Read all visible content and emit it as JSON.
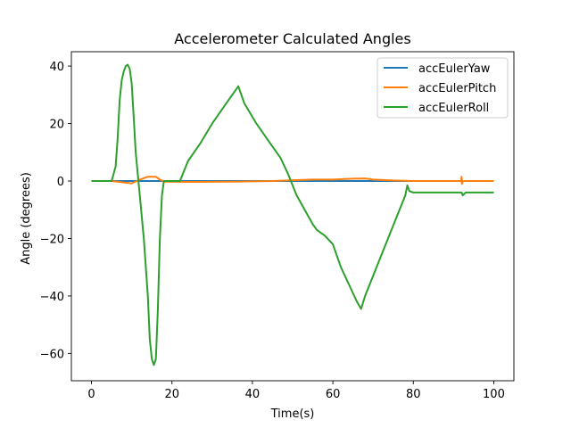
{
  "chart_data": {
    "type": "line",
    "title": "Accelerometer Calculated Angles",
    "xlabel": "Time(s)",
    "ylabel": "Angle (degrees)",
    "xlim": [
      -5,
      105
    ],
    "ylim": [
      -69.5,
      45
    ],
    "xticks": [
      0,
      20,
      40,
      60,
      80,
      100
    ],
    "yticks": [
      -60,
      -40,
      -20,
      0,
      20,
      40
    ],
    "grid": false,
    "legend_position": "top-right",
    "series": [
      {
        "name": "accEulerYaw",
        "color": "#1f77b4",
        "points": [
          [
            0,
            0
          ],
          [
            20,
            0
          ],
          [
            40,
            0
          ],
          [
            60,
            0
          ],
          [
            80,
            0
          ],
          [
            100,
            0
          ]
        ]
      },
      {
        "name": "accEulerPitch",
        "color": "#ff7f0e",
        "points": [
          [
            0,
            0
          ],
          [
            5,
            0
          ],
          [
            8,
            -0.5
          ],
          [
            10,
            -0.8
          ],
          [
            12,
            0.5
          ],
          [
            14,
            1.5
          ],
          [
            16,
            1.5
          ],
          [
            17,
            0.5
          ],
          [
            18,
            -0.2
          ],
          [
            25,
            -0.3
          ],
          [
            35,
            -0.2
          ],
          [
            45,
            0
          ],
          [
            50,
            0.3
          ],
          [
            55,
            0.5
          ],
          [
            60,
            0.5
          ],
          [
            65,
            0.8
          ],
          [
            68,
            0.9
          ],
          [
            70,
            0.5
          ],
          [
            75,
            0.2
          ],
          [
            80,
            0
          ],
          [
            90,
            0
          ],
          [
            91.9,
            0
          ],
          [
            92,
            1.5
          ],
          [
            92.1,
            -1
          ],
          [
            92.3,
            0
          ],
          [
            100,
            0
          ]
        ]
      },
      {
        "name": "accEulerRoll",
        "color": "#2ca02c",
        "points": [
          [
            0,
            0
          ],
          [
            4,
            0
          ],
          [
            5,
            0
          ],
          [
            6,
            5
          ],
          [
            6.5,
            15
          ],
          [
            7,
            28
          ],
          [
            7.5,
            35
          ],
          [
            8,
            38
          ],
          [
            8.5,
            40
          ],
          [
            9,
            40.5
          ],
          [
            9.5,
            39
          ],
          [
            10,
            34
          ],
          [
            10.5,
            22
          ],
          [
            11,
            10
          ],
          [
            12,
            -5
          ],
          [
            13,
            -20
          ],
          [
            14,
            -40
          ],
          [
            14.5,
            -55
          ],
          [
            15,
            -62
          ],
          [
            15.5,
            -64
          ],
          [
            16,
            -62
          ],
          [
            16.5,
            -45
          ],
          [
            17,
            -20
          ],
          [
            17.5,
            -5
          ],
          [
            18,
            0
          ],
          [
            20,
            0
          ],
          [
            22,
            0
          ],
          [
            24,
            7
          ],
          [
            27,
            13
          ],
          [
            30,
            20
          ],
          [
            33,
            26
          ],
          [
            36,
            32
          ],
          [
            36.5,
            33
          ],
          [
            38,
            27
          ],
          [
            41,
            20
          ],
          [
            44,
            14
          ],
          [
            47,
            8
          ],
          [
            49,
            2
          ],
          [
            51,
            -5
          ],
          [
            53,
            -10
          ],
          [
            55,
            -15
          ],
          [
            56,
            -17
          ],
          [
            58,
            -19
          ],
          [
            60,
            -22
          ],
          [
            62,
            -30
          ],
          [
            64,
            -36
          ],
          [
            66,
            -42
          ],
          [
            67,
            -44.5
          ],
          [
            68,
            -40
          ],
          [
            70,
            -33
          ],
          [
            72,
            -26
          ],
          [
            74,
            -19
          ],
          [
            76,
            -12
          ],
          [
            78,
            -5
          ],
          [
            78.5,
            -1.5
          ],
          [
            79,
            -3.5
          ],
          [
            80,
            -4
          ],
          [
            85,
            -4
          ],
          [
            90,
            -4
          ],
          [
            92,
            -4
          ],
          [
            92.3,
            -5
          ],
          [
            93,
            -4
          ],
          [
            100,
            -4
          ]
        ]
      }
    ]
  }
}
